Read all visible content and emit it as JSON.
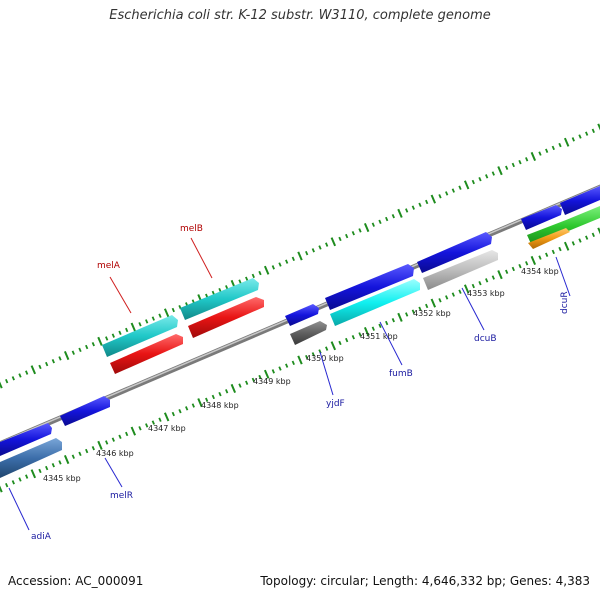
{
  "title": "Escherichia coli str. K-12 substr. W3110, complete genome",
  "footer": {
    "accession": "Accession: AC_000091",
    "summary": "Topology: circular; Length: 4,646,332 bp; Genes: 4,383"
  },
  "colors": {
    "backbone": "#8c8c8c",
    "tick": "#1e8c1e",
    "label_blue": "#1a1aa0",
    "label_red": "#b00000",
    "callout_blue": "#2828d0",
    "callout_red": "#d02020"
  },
  "ticks": [
    {
      "label": "4345 kbp"
    },
    {
      "label": "4346 kbp"
    },
    {
      "label": "4347 kbp"
    },
    {
      "label": "4348 kbp"
    },
    {
      "label": "4349 kbp"
    },
    {
      "label": "4350 kbp"
    },
    {
      "label": "4351 kbp"
    },
    {
      "label": "4352 kbp"
    },
    {
      "label": "4353 kbp"
    },
    {
      "label": "4354 kbp"
    }
  ],
  "gene_labels": [
    {
      "name": "melB"
    },
    {
      "name": "melA"
    },
    {
      "name": "yjdF"
    },
    {
      "name": "fumB"
    },
    {
      "name": "dcuB"
    },
    {
      "name": "dcuR"
    },
    {
      "name": "melR"
    },
    {
      "name": "adiA"
    }
  ],
  "features": [
    {
      "name": "blue-gene",
      "color": "#1414dc"
    },
    {
      "name": "cyan-gene",
      "color": "#20c8c8"
    },
    {
      "name": "red-gene",
      "color": "#e81414"
    },
    {
      "name": "gray-gene",
      "color": "#bdbdbd"
    },
    {
      "name": "darkgray-gene",
      "color": "#606060"
    },
    {
      "name": "bright-cyan-gene",
      "color": "#10f0f0"
    },
    {
      "name": "steelblue-gene",
      "color": "#3c6eaa"
    },
    {
      "name": "green-gene",
      "color": "#2ec82e"
    },
    {
      "name": "orange-gene",
      "color": "#f09a14"
    }
  ]
}
